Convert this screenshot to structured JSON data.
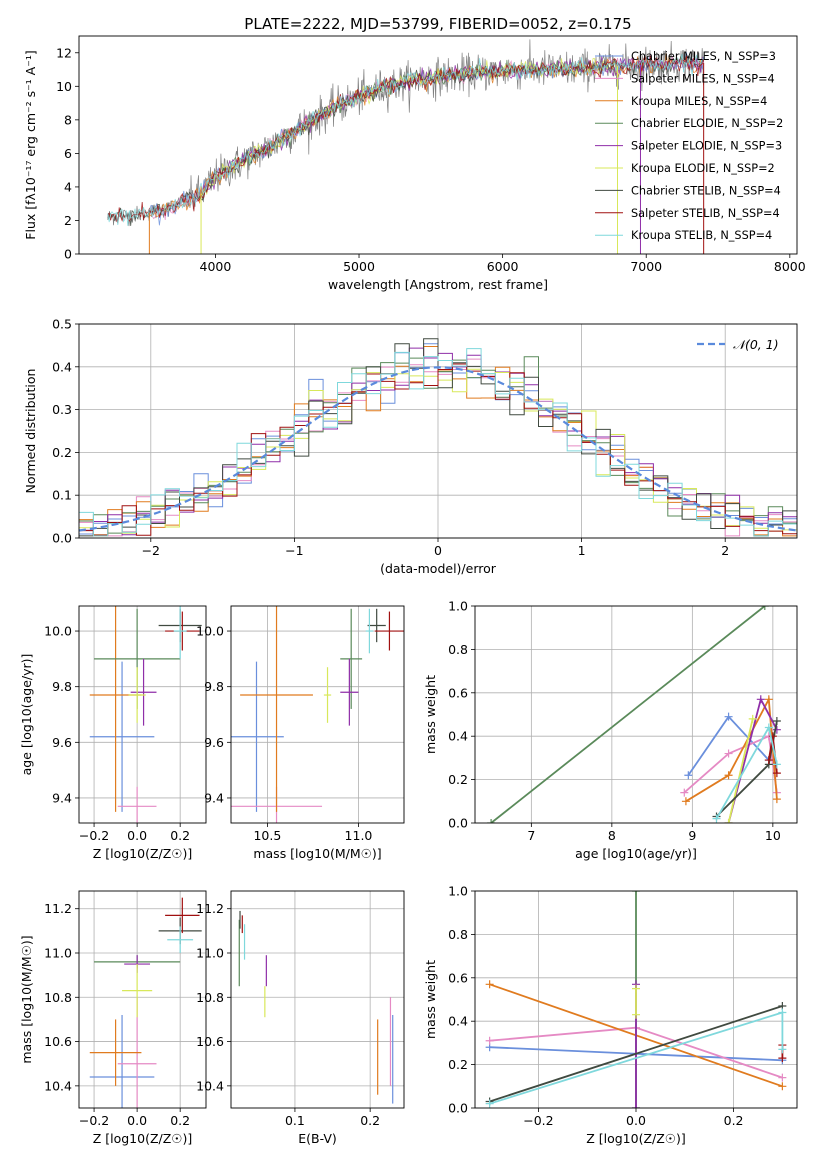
{
  "figure": {
    "title": "PLATE=2222, MJD=53799, FIBERID=0052, z=0.175"
  },
  "colors": {
    "chabrier_miles": "#6a8fdc",
    "salpeter_miles": "#e58ac4",
    "kroupa_miles": "#e07b1f",
    "chabrier_elodie": "#5a8a5a",
    "salpeter_elodie": "#8f2ea8",
    "kroupa_elodie": "#d8e85a",
    "chabrier_stelib": "#404a40",
    "salpeter_stelib": "#a01010",
    "kroupa_stelib": "#7fd8dc",
    "data_gray": "#808080",
    "gaussian": "#5a8adc",
    "grid": "#b0b0b0"
  },
  "chart_data": [
    {
      "id": "spectrum",
      "type": "line",
      "xlabel": "wavelength [Angstrom, rest frame]",
      "ylabel": "Flux [fλ10⁻¹⁷ erg cm⁻² s⁻¹ A⁻¹]",
      "xlim": [
        3050,
        8050
      ],
      "ylim": [
        0,
        13
      ],
      "xticks": [
        4000,
        5000,
        6000,
        7000,
        8000
      ],
      "yticks": [
        0,
        2,
        4,
        6,
        8,
        10,
        12
      ],
      "grid": false,
      "legend_position": "top-right",
      "legend": [
        {
          "label": "Chabrier MILES, N_SSP=3",
          "color_key": "chabrier_miles"
        },
        {
          "label": "Salpeter MILES, N_SSP=4",
          "color_key": "salpeter_miles"
        },
        {
          "label": "Kroupa MILES, N_SSP=4",
          "color_key": "kroupa_miles"
        },
        {
          "label": "Chabrier ELODIE, N_SSP=2",
          "color_key": "chabrier_elodie"
        },
        {
          "label": "Salpeter ELODIE, N_SSP=3",
          "color_key": "salpeter_elodie"
        },
        {
          "label": "Kroupa ELODIE, N_SSP=2",
          "color_key": "kroupa_elodie"
        },
        {
          "label": "Chabrier STELIB, N_SSP=4",
          "color_key": "chabrier_stelib"
        },
        {
          "label": "Salpeter STELIB, N_SSP=4",
          "color_key": "salpeter_stelib"
        },
        {
          "label": "Kroupa STELIB, N_SSP=4",
          "color_key": "kroupa_stelib"
        }
      ],
      "continuum": {
        "x": [
          3250,
          3500,
          3700,
          3900,
          4000,
          4200,
          4400,
          4600,
          4800,
          5000,
          5200,
          5400,
          5600,
          5800,
          6000,
          6200,
          6400,
          6600,
          6800,
          7000,
          7200,
          7400
        ],
        "y": [
          2.2,
          2.4,
          2.8,
          3.6,
          4.6,
          5.6,
          6.5,
          7.6,
          8.6,
          9.4,
          10.0,
          10.4,
          10.6,
          10.8,
          10.9,
          11.0,
          11.0,
          11.1,
          11.2,
          11.3,
          11.4,
          11.4
        ]
      }
    },
    {
      "id": "residuals",
      "type": "histogram",
      "xlabel": "(data-model)/error",
      "ylabel": "Normed distribution",
      "xlim": [
        -2.5,
        2.5
      ],
      "ylim": [
        0,
        0.5
      ],
      "xticks": [
        -2,
        -1,
        0,
        1,
        2
      ],
      "yticks": [
        0.0,
        0.1,
        0.2,
        0.3,
        0.4,
        0.5
      ],
      "grid": true,
      "legend_position": "top-right",
      "bins": 50,
      "gaussian_label": "𝒩(0, 1)"
    },
    {
      "id": "age-vs-Z",
      "type": "scatter",
      "xlabel": "Z [log10(Z/Z☉)]",
      "ylabel": "age  [log10(age/yr)]",
      "xlim": [
        -0.27,
        0.32
      ],
      "ylim": [
        9.31,
        10.09
      ],
      "xticks": [
        -0.2,
        0.0,
        0.2
      ],
      "yticks": [
        9.4,
        9.6,
        9.8,
        10.0
      ],
      "grid": true,
      "points": [
        {
          "x": -0.07,
          "y": 9.62,
          "xerr": 0.15,
          "yerr": 0.27,
          "color_key": "chabrier_miles"
        },
        {
          "x": 0.0,
          "y": 9.37,
          "xerr": 0.09,
          "yerr": 0.07,
          "color_key": "salpeter_miles"
        },
        {
          "x": -0.1,
          "y": 9.77,
          "xerr": 0.12,
          "yerr": 0.42,
          "color_key": "kroupa_miles"
        },
        {
          "x": 0.0,
          "y": 9.9,
          "xerr": 0.2,
          "yerr": 0.18,
          "color_key": "chabrier_elodie"
        },
        {
          "x": 0.03,
          "y": 9.78,
          "xerr": 0.06,
          "yerr": 0.12,
          "color_key": "salpeter_elodie"
        },
        {
          "x": 0.0,
          "y": 9.77,
          "xerr": 0.04,
          "yerr": 0.1,
          "color_key": "kroupa_elodie"
        },
        {
          "x": 0.2,
          "y": 10.02,
          "xerr": 0.1,
          "yerr": 0.06,
          "color_key": "chabrier_stelib"
        },
        {
          "x": 0.21,
          "y": 10.0,
          "xerr": 0.08,
          "yerr": 0.07,
          "color_key": "salpeter_stelib"
        },
        {
          "x": 0.2,
          "y": 10.0,
          "xerr": 0.03,
          "yerr": 0.1,
          "color_key": "kroupa_stelib"
        }
      ]
    },
    {
      "id": "age-vs-mass",
      "type": "scatter",
      "xlabel": "mass [log10(M/M☉)]",
      "ylabel": "",
      "xlim": [
        10.3,
        11.25
      ],
      "ylim": [
        9.31,
        10.09
      ],
      "xticks": [
        10.5,
        11.0
      ],
      "yticks": [
        9.4,
        9.6,
        9.8,
        10.0
      ],
      "grid": true,
      "points": [
        {
          "x": 10.44,
          "y": 9.62,
          "xerr": 0.15,
          "yerr": 0.27,
          "color_key": "chabrier_miles"
        },
        {
          "x": 10.55,
          "y": 9.37,
          "xerr": 0.25,
          "yerr": 0.07,
          "color_key": "salpeter_miles"
        },
        {
          "x": 10.55,
          "y": 9.77,
          "xerr": 0.2,
          "yerr": 0.42,
          "color_key": "kroupa_miles"
        },
        {
          "x": 10.96,
          "y": 9.9,
          "xerr": 0.06,
          "yerr": 0.18,
          "color_key": "chabrier_elodie"
        },
        {
          "x": 10.95,
          "y": 9.78,
          "xerr": 0.05,
          "yerr": 0.12,
          "color_key": "salpeter_elodie"
        },
        {
          "x": 10.83,
          "y": 9.77,
          "xerr": 0.02,
          "yerr": 0.1,
          "color_key": "kroupa_elodie"
        },
        {
          "x": 11.1,
          "y": 10.02,
          "xerr": 0.05,
          "yerr": 0.06,
          "color_key": "chabrier_stelib"
        },
        {
          "x": 11.17,
          "y": 10.0,
          "xerr": 0.08,
          "yerr": 0.07,
          "color_key": "salpeter_stelib"
        },
        {
          "x": 11.06,
          "y": 10.0,
          "xerr": 0.02,
          "yerr": 0.08,
          "color_key": "kroupa_stelib"
        }
      ]
    },
    {
      "id": "massweight-vs-age",
      "type": "line",
      "xlabel": "age  [log10(age/yr)]",
      "ylabel": "mass weight",
      "xlim": [
        6.3,
        10.3
      ],
      "ylim": [
        0,
        1.0
      ],
      "xticks": [
        7,
        8,
        9,
        10
      ],
      "yticks": [
        0.0,
        0.2,
        0.4,
        0.6,
        0.8,
        1.0
      ],
      "grid": true,
      "series": [
        {
          "color_key": "chabrier_elodie",
          "x": [
            6.5,
            9.9
          ],
          "y": [
            0.0,
            1.0
          ]
        },
        {
          "color_key": "chabrier_miles",
          "x": [
            8.95,
            9.45,
            9.95
          ],
          "y": [
            0.22,
            0.49,
            0.29
          ]
        },
        {
          "color_key": "salpeter_miles",
          "x": [
            8.9,
            9.45,
            9.95,
            10.05
          ],
          "y": [
            0.14,
            0.32,
            0.4,
            0.14
          ]
        },
        {
          "color_key": "kroupa_miles",
          "x": [
            8.92,
            9.45,
            9.95,
            10.05
          ],
          "y": [
            0.1,
            0.22,
            0.57,
            0.11
          ]
        },
        {
          "color_key": "salpeter_elodie",
          "x": [
            9.45,
            9.85,
            10.05
          ],
          "y": [
            0.0,
            0.57,
            0.43
          ]
        },
        {
          "color_key": "kroupa_elodie",
          "x": [
            9.45,
            9.75
          ],
          "y": [
            0.0,
            0.48
          ]
        },
        {
          "color_key": "chabrier_stelib",
          "x": [
            9.3,
            9.95,
            10.05
          ],
          "y": [
            0.03,
            0.27,
            0.47
          ]
        },
        {
          "color_key": "salpeter_stelib",
          "x": [
            9.95,
            10.0,
            10.05
          ],
          "y": [
            0.29,
            0.4,
            0.23
          ]
        },
        {
          "color_key": "kroupa_stelib",
          "x": [
            9.3,
            9.95,
            10.05
          ],
          "y": [
            0.02,
            0.44,
            0.27
          ]
        }
      ]
    },
    {
      "id": "mass-vs-Z",
      "type": "scatter",
      "xlabel": "Z [log10(Z/Z☉)]",
      "ylabel": "mass [log10(M/M☉)]",
      "xlim": [
        -0.27,
        0.32
      ],
      "ylim": [
        10.3,
        11.28
      ],
      "xticks": [
        -0.2,
        0.0,
        0.2
      ],
      "yticks": [
        10.4,
        10.6,
        10.8,
        11.0,
        11.2
      ],
      "grid": true,
      "points": [
        {
          "x": -0.07,
          "y": 10.44,
          "xerr": 0.15,
          "yerr": 0.28,
          "color_key": "chabrier_miles"
        },
        {
          "x": 0.0,
          "y": 10.5,
          "xerr": 0.09,
          "yerr": 0.3,
          "color_key": "salpeter_miles"
        },
        {
          "x": -0.1,
          "y": 10.55,
          "xerr": 0.12,
          "yerr": 0.15,
          "color_key": "kroupa_miles"
        },
        {
          "x": 0.0,
          "y": 10.96,
          "xerr": 0.2,
          "yerr": 0.03,
          "color_key": "chabrier_elodie"
        },
        {
          "x": 0.0,
          "y": 10.95,
          "xerr": 0.06,
          "yerr": 0.04,
          "color_key": "salpeter_elodie"
        },
        {
          "x": 0.0,
          "y": 10.83,
          "xerr": 0.07,
          "yerr": 0.12,
          "color_key": "kroupa_elodie"
        },
        {
          "x": 0.2,
          "y": 11.1,
          "xerr": 0.1,
          "yerr": 0.06,
          "color_key": "chabrier_stelib"
        },
        {
          "x": 0.21,
          "y": 11.17,
          "xerr": 0.08,
          "yerr": 0.08,
          "color_key": "salpeter_stelib"
        },
        {
          "x": 0.2,
          "y": 11.06,
          "xerr": 0.06,
          "yerr": 0.06,
          "color_key": "kroupa_stelib"
        }
      ]
    },
    {
      "id": "mass-vs-ebv",
      "type": "scatter",
      "xlabel": "E(B-V)",
      "ylabel": "",
      "xlim": [
        0.015,
        0.245
      ],
      "ylim": [
        10.3,
        11.28
      ],
      "xticks": [
        0.1,
        0.2
      ],
      "yticks": [
        10.4,
        10.6,
        10.8,
        11.0,
        11.2
      ],
      "grid": true,
      "points": [
        {
          "x": 0.23,
          "y": 10.52,
          "xerr": 0,
          "yerr": 0.2,
          "color_key": "chabrier_miles"
        },
        {
          "x": 0.227,
          "y": 10.6,
          "xerr": 0,
          "yerr": 0.2,
          "color_key": "salpeter_miles"
        },
        {
          "x": 0.21,
          "y": 10.53,
          "xerr": 0,
          "yerr": 0.17,
          "color_key": "kroupa_miles"
        },
        {
          "x": 0.026,
          "y": 11.0,
          "xerr": 0,
          "yerr": 0.15,
          "color_key": "chabrier_elodie"
        },
        {
          "x": 0.062,
          "y": 10.92,
          "xerr": 0,
          "yerr": 0.07,
          "color_key": "salpeter_elodie"
        },
        {
          "x": 0.06,
          "y": 10.78,
          "xerr": 0,
          "yerr": 0.07,
          "color_key": "kroupa_elodie"
        },
        {
          "x": 0.027,
          "y": 11.15,
          "xerr": 0,
          "yerr": 0.04,
          "color_key": "chabrier_stelib"
        },
        {
          "x": 0.03,
          "y": 11.13,
          "xerr": 0,
          "yerr": 0.04,
          "color_key": "salpeter_stelib"
        },
        {
          "x": 0.033,
          "y": 11.05,
          "xerr": 0,
          "yerr": 0.08,
          "color_key": "kroupa_stelib"
        }
      ]
    },
    {
      "id": "massweight-vs-Z",
      "type": "line",
      "xlabel": "Z [log10(Z/Z☉)]",
      "ylabel": "mass weight",
      "xlim": [
        -0.33,
        0.33
      ],
      "ylim": [
        0,
        1.0
      ],
      "xticks": [
        -0.2,
        0.0,
        0.2
      ],
      "yticks": [
        0.0,
        0.2,
        0.4,
        0.6,
        0.8,
        1.0
      ],
      "grid": true,
      "series": [
        {
          "color_key": "chabrier_miles",
          "x": [
            -0.3,
            0.3
          ],
          "y": [
            0.28,
            0.22
          ]
        },
        {
          "color_key": "salpeter_miles",
          "x": [
            -0.3,
            0.0,
            0.3
          ],
          "y": [
            0.31,
            0.37,
            0.14
          ]
        },
        {
          "color_key": "kroupa_miles",
          "x": [
            -0.3,
            0.3
          ],
          "y": [
            0.57,
            0.1
          ]
        },
        {
          "color_key": "chabrier_elodie",
          "x": [
            0.0,
            0.0
          ],
          "y": [
            0.0,
            1.0
          ]
        },
        {
          "color_key": "salpeter_elodie",
          "x": [
            0.0,
            0.0
          ],
          "y": [
            0.0,
            0.57
          ]
        },
        {
          "color_key": "kroupa_elodie",
          "x": [
            0.0,
            0.0
          ],
          "y": [
            0.43,
            0.55
          ]
        },
        {
          "color_key": "chabrier_stelib",
          "x": [
            -0.3,
            0.3
          ],
          "y": [
            0.03,
            0.47
          ]
        },
        {
          "color_key": "salpeter_stelib",
          "x": [
            0.3,
            0.3
          ],
          "y": [
            0.23,
            0.29
          ]
        },
        {
          "color_key": "kroupa_stelib",
          "x": [
            -0.3,
            0.3,
            0.3
          ],
          "y": [
            0.02,
            0.44,
            0.27
          ]
        }
      ]
    }
  ]
}
